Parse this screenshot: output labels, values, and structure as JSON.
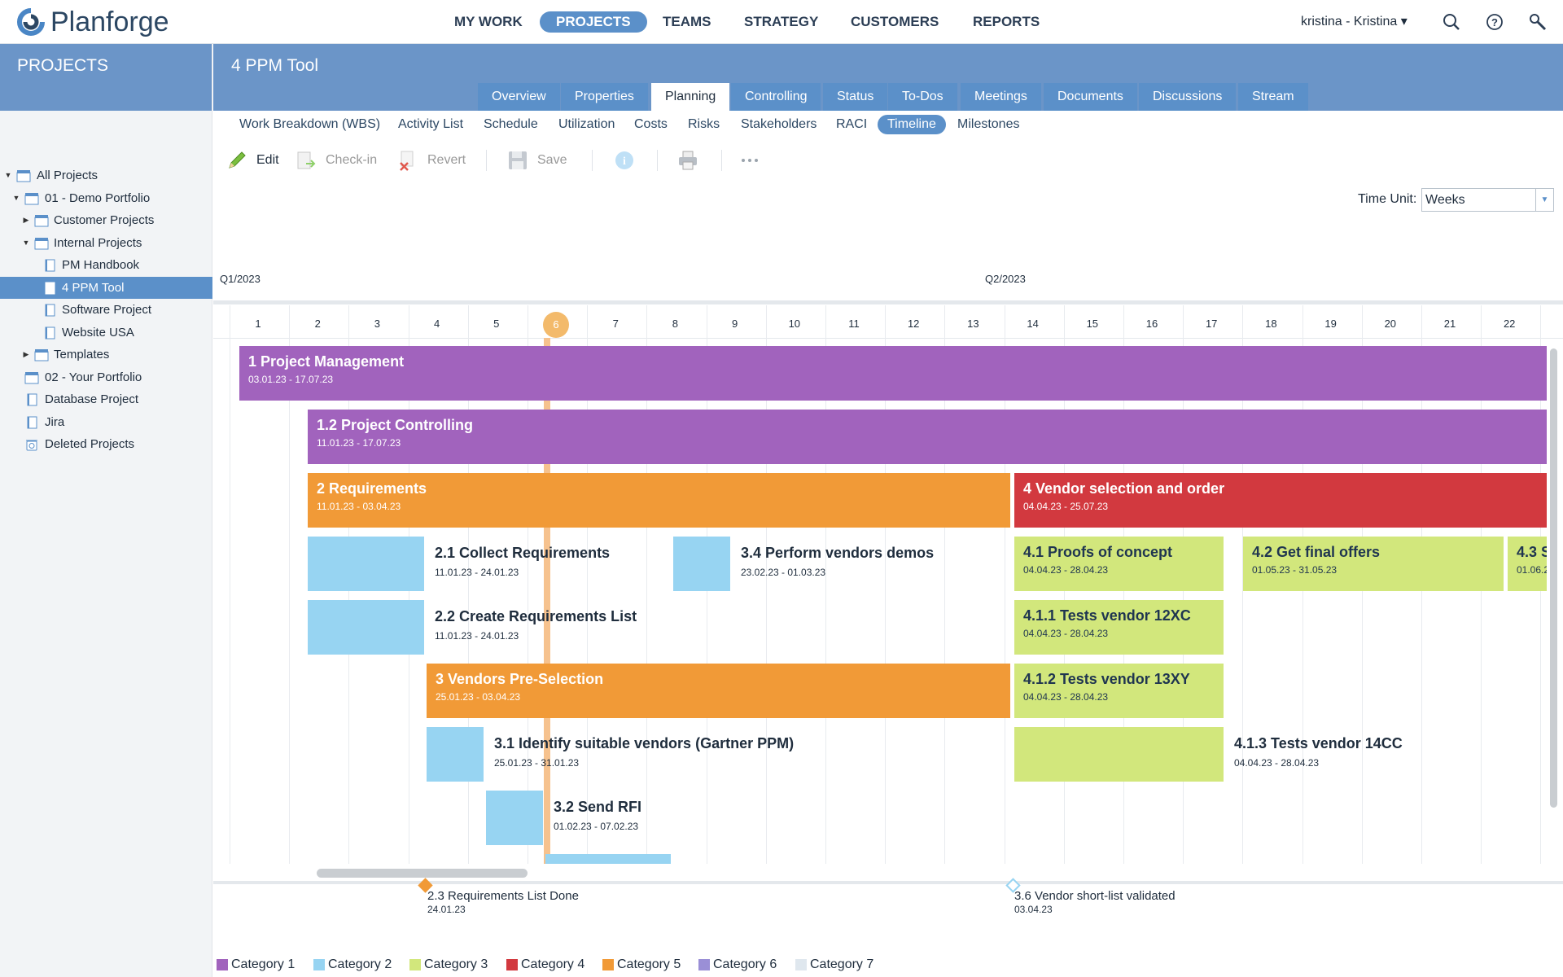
{
  "app": {
    "name": "Planforge"
  },
  "nav": {
    "items": [
      "MY WORK",
      "PROJECTS",
      "TEAMS",
      "STRATEGY",
      "CUSTOMERS",
      "REPORTS"
    ],
    "active": "PROJECTS",
    "user": "kristina - Kristina ▾"
  },
  "sidebar": {
    "title": "PROJECTS",
    "tree": [
      {
        "label": "All Projects",
        "arrow": "▼",
        "selected": false
      },
      {
        "label": "01 - Demo Portfolio",
        "arrow": "▼",
        "selected": false
      },
      {
        "label": "Customer Projects",
        "arrow": "▶",
        "selected": false
      },
      {
        "label": "Internal Projects",
        "arrow": "▼",
        "selected": false
      },
      {
        "label": "PM Handbook",
        "arrow": "",
        "selected": false
      },
      {
        "label": "4 PPM Tool",
        "arrow": "",
        "selected": true
      },
      {
        "label": "Software Project",
        "arrow": "",
        "selected": false
      },
      {
        "label": "Website USA",
        "arrow": "",
        "selected": false
      },
      {
        "label": "Templates",
        "arrow": "▶",
        "selected": false
      },
      {
        "label": "02 - Your Portfolio",
        "arrow": "",
        "selected": false
      },
      {
        "label": "Database Project",
        "arrow": "",
        "selected": false
      },
      {
        "label": "Jira",
        "arrow": "",
        "selected": false
      },
      {
        "label": "Deleted Projects",
        "arrow": "",
        "selected": false
      }
    ]
  },
  "project": {
    "title": "4 PPM Tool"
  },
  "tabs": [
    "Overview",
    "Properties",
    "Planning",
    "Controlling",
    "Status",
    "To-Dos",
    "Meetings",
    "Documents",
    "Discussions",
    "Stream"
  ],
  "active_tab": "Planning",
  "subtabs": [
    "Work Breakdown (WBS)",
    "Activity List",
    "Schedule",
    "Utilization",
    "Costs",
    "Risks",
    "Stakeholders",
    "RACI",
    "Timeline",
    "Milestones"
  ],
  "active_subtab": "Timeline",
  "toolbar": {
    "edit": "Edit",
    "checkin": "Check-in",
    "revert": "Revert",
    "save": "Save"
  },
  "timeunit": {
    "label": "Time Unit:",
    "value": "Weeks"
  },
  "timeline": {
    "quarters": [
      "Q1/2023",
      "Q2/2023"
    ],
    "weeks": [
      "1",
      "2",
      "3",
      "4",
      "5",
      "6",
      "7",
      "8",
      "9",
      "10",
      "11",
      "12",
      "13",
      "14",
      "15",
      "16",
      "17",
      "18",
      "19",
      "20",
      "21",
      "22"
    ],
    "current_week": "6",
    "tasks": [
      {
        "name": "1 Project Management",
        "dates": "03.01.23 - 17.07.23",
        "category": 1
      },
      {
        "name": "1.2 Project Controlling",
        "dates": "11.01.23 - 17.07.23",
        "category": 1
      },
      {
        "name": "2 Requirements",
        "dates": "11.01.23 - 03.04.23",
        "category": 5
      },
      {
        "name": "4 Vendor selection and order",
        "dates": "04.04.23 - 25.07.23",
        "category": 4
      },
      {
        "name": "2.1 Collect Requirements",
        "dates": "11.01.23 - 24.01.23",
        "category": 2
      },
      {
        "name": "3.4 Perform vendors demos",
        "dates": "23.02.23 - 01.03.23",
        "category": 2
      },
      {
        "name": "4.1 Proofs of concept",
        "dates": "04.04.23 - 28.04.23",
        "category": 3
      },
      {
        "name": "4.2 Get final offers",
        "dates": "01.05.23 - 31.05.23",
        "category": 3
      },
      {
        "name": "4.3 S",
        "dates": "01.06.2",
        "category": 3
      },
      {
        "name": "2.2 Create Requirements List",
        "dates": "11.01.23 - 24.01.23",
        "category": 2
      },
      {
        "name": "4.1.1 Tests vendor 12XC",
        "dates": "04.04.23 - 28.04.23",
        "category": 3
      },
      {
        "name": "3 Vendors Pre-Selection",
        "dates": "25.01.23 - 03.04.23",
        "category": 5
      },
      {
        "name": "4.1.2 Tests vendor 13XY",
        "dates": "04.04.23 - 28.04.23",
        "category": 3
      },
      {
        "name": "3.1 Identify suitable vendors (Gartner PPM)",
        "dates": "25.01.23 - 31.01.23",
        "category": 2
      },
      {
        "name": "4.1.3 Tests vendor 14CC",
        "dates": "04.04.23 - 28.04.23",
        "category": 3
      },
      {
        "name": "3.2 Send RFI",
        "dates": "01.02.23 - 07.02.23",
        "category": 2
      }
    ],
    "milestones": [
      {
        "name": "2.3 Requirements List Done",
        "date": "24.01.23",
        "category": 5
      },
      {
        "name": "3.6 Vendor short-list validated",
        "date": "03.04.23",
        "category": 2
      }
    ]
  },
  "legend": [
    {
      "label": "Category 1",
      "color": "#a163bd"
    },
    {
      "label": "Category 2",
      "color": "#97d4f2"
    },
    {
      "label": "Category 3",
      "color": "#d2e77c"
    },
    {
      "label": "Category 4",
      "color": "#d2393f"
    },
    {
      "label": "Category 5",
      "color": "#f19a37"
    },
    {
      "label": "Category 6",
      "color": "#9a8fd6"
    },
    {
      "label": "Category 7",
      "color": "#dfe7ee"
    }
  ]
}
